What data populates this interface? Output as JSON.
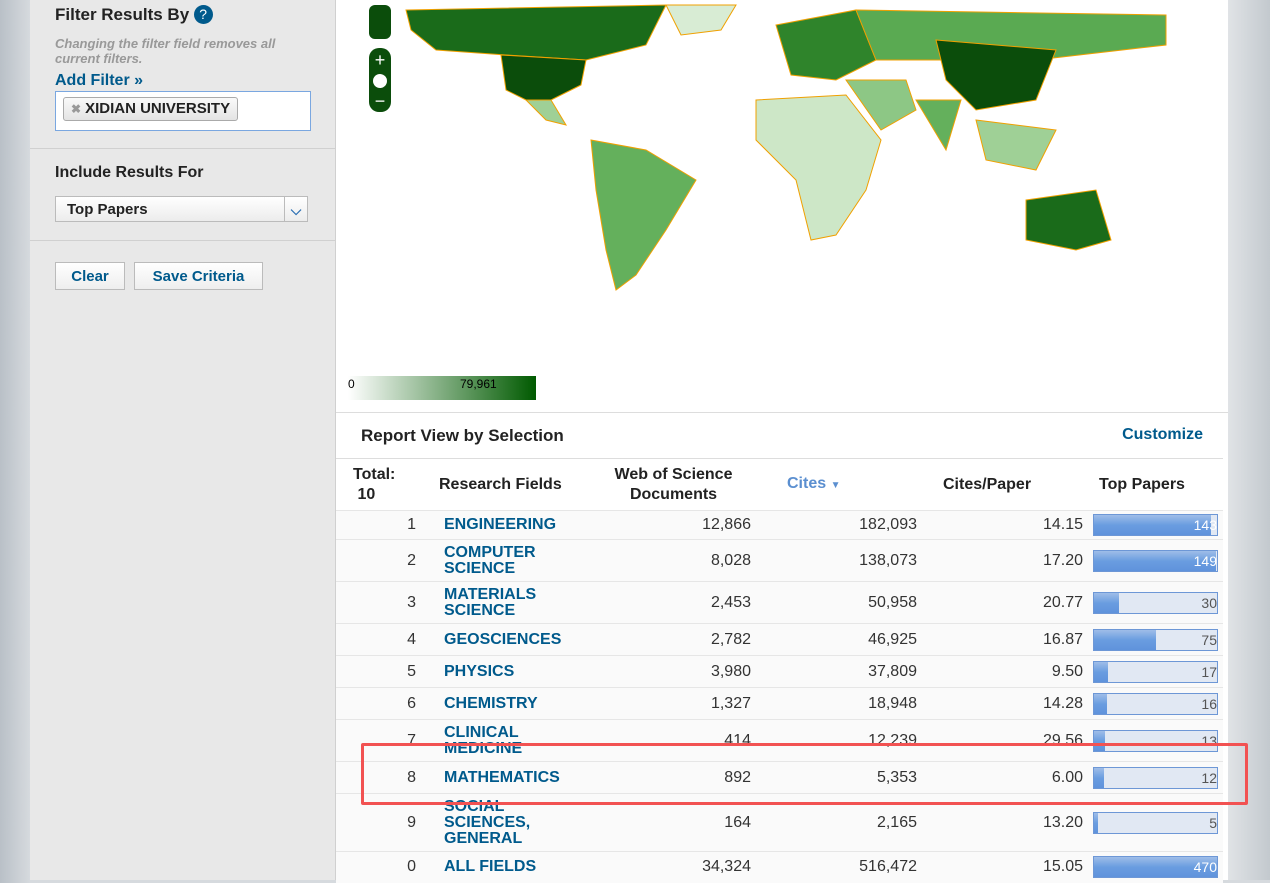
{
  "sidebar": {
    "filter_title": "Filter Results By",
    "help_icon": "?",
    "note": "Changing the filter field removes all current filters.",
    "add_filter": "Add Filter »",
    "filter_chip": "XIDIAN UNIVERSITY",
    "include_title": "Include Results For",
    "include_value": "Top Papers",
    "clear": "Clear",
    "save": "Save Criteria"
  },
  "map": {
    "legend_min": "0",
    "legend_max": "79,961",
    "colors": {
      "low": "#ffffff",
      "high": "#005a00",
      "border": "#f0a000"
    }
  },
  "report": {
    "title": "Report View by Selection",
    "customize": "Customize",
    "headers": {
      "total": "Total:",
      "total_n": "10",
      "field": "Research Fields",
      "docs": "Web of Science Documents",
      "cites": "Cites",
      "cpp": "Cites/Paper",
      "top": "Top Papers"
    },
    "rows": [
      {
        "rank": "1",
        "field": "ENGINEERING",
        "docs": "12,866",
        "cites": "182,093",
        "cpp": "14.15",
        "top": 143
      },
      {
        "rank": "2",
        "field": "COMPUTER SCIENCE",
        "docs": "8,028",
        "cites": "138,073",
        "cpp": "17.20",
        "top": 149
      },
      {
        "rank": "3",
        "field": "MATERIALS SCIENCE",
        "docs": "2,453",
        "cites": "50,958",
        "cpp": "20.77",
        "top": 30
      },
      {
        "rank": "4",
        "field": "GEOSCIENCES",
        "docs": "2,782",
        "cites": "46,925",
        "cpp": "16.87",
        "top": 75
      },
      {
        "rank": "5",
        "field": "PHYSICS",
        "docs": "3,980",
        "cites": "37,809",
        "cpp": "9.50",
        "top": 17
      },
      {
        "rank": "6",
        "field": "CHEMISTRY",
        "docs": "1,327",
        "cites": "18,948",
        "cpp": "14.28",
        "top": 16
      },
      {
        "rank": "7",
        "field": "CLINICAL MEDICINE",
        "docs": "414",
        "cites": "12,239",
        "cpp": "29.56",
        "top": 13
      },
      {
        "rank": "8",
        "field": "MATHEMATICS",
        "docs": "892",
        "cites": "5,353",
        "cpp": "6.00",
        "top": 12
      },
      {
        "rank": "9",
        "field": "SOCIAL SCIENCES, GENERAL",
        "docs": "164",
        "cites": "2,165",
        "cpp": "13.20",
        "top": 5
      },
      {
        "rank": "0",
        "field": "ALL FIELDS",
        "docs": "34,324",
        "cites": "516,472",
        "cpp": "15.05",
        "top": 470
      }
    ]
  }
}
